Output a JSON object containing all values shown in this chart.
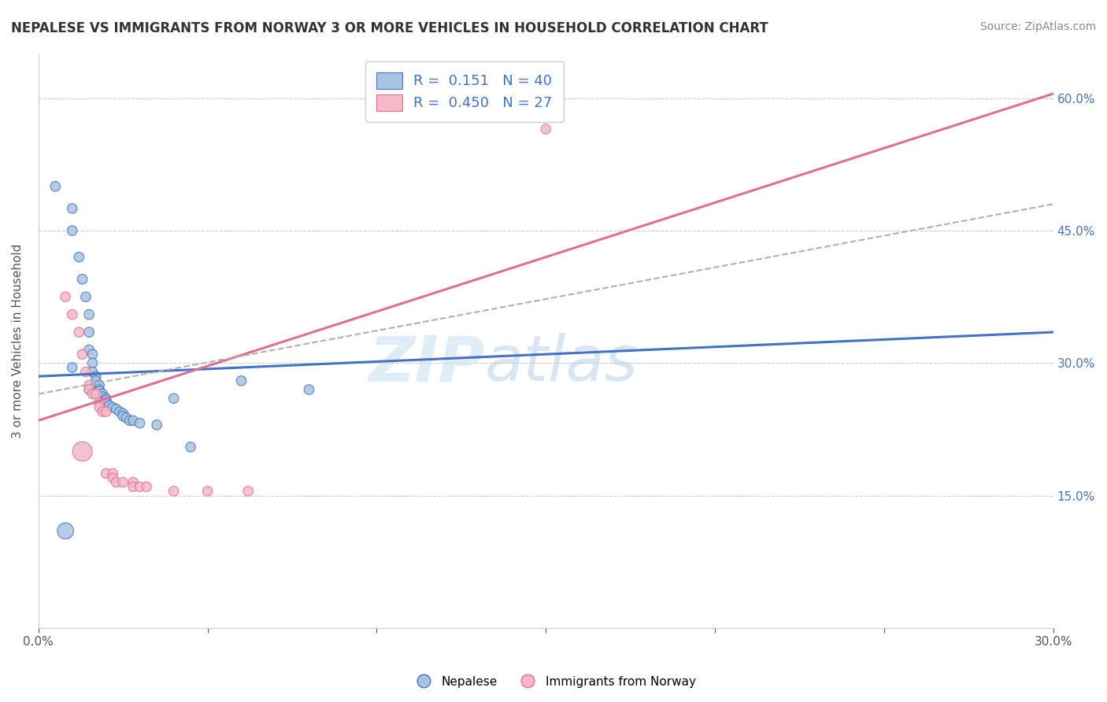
{
  "title": "NEPALESE VS IMMIGRANTS FROM NORWAY 3 OR MORE VEHICLES IN HOUSEHOLD CORRELATION CHART",
  "source": "Source: ZipAtlas.com",
  "ylabel": "3 or more Vehicles in Household",
  "x_min": 0.0,
  "x_max": 0.3,
  "y_min": 0.0,
  "y_max": 0.65,
  "x_ticks": [
    0.0,
    0.05,
    0.1,
    0.15,
    0.2,
    0.25,
    0.3
  ],
  "x_tick_labels": [
    "0.0%",
    "",
    "",
    "",
    "",
    "",
    "30.0%"
  ],
  "y_ticks": [
    0.0,
    0.15,
    0.3,
    0.45,
    0.6
  ],
  "y_tick_labels_right": [
    "",
    "15.0%",
    "30.0%",
    "45.0%",
    "60.0%"
  ],
  "blue_color": "#a8c4e0",
  "pink_color": "#f4b8c8",
  "blue_line_color": "#4472c4",
  "pink_line_color": "#e07090",
  "dashed_line_color": "#b0b0b0",
  "watermark_zip": "ZIP",
  "watermark_atlas": "atlas",
  "blue_line": [
    0.0,
    0.285,
    0.3,
    0.335
  ],
  "pink_line": [
    0.0,
    0.235,
    0.3,
    0.605
  ],
  "dashed_line": [
    0.0,
    0.265,
    0.3,
    0.48
  ],
  "blue_scatter": [
    [
      0.005,
      0.5
    ],
    [
      0.01,
      0.475
    ],
    [
      0.01,
      0.45
    ],
    [
      0.012,
      0.42
    ],
    [
      0.013,
      0.395
    ],
    [
      0.014,
      0.375
    ],
    [
      0.015,
      0.355
    ],
    [
      0.015,
      0.335
    ],
    [
      0.015,
      0.315
    ],
    [
      0.016,
      0.31
    ],
    [
      0.016,
      0.3
    ],
    [
      0.016,
      0.29
    ],
    [
      0.017,
      0.285
    ],
    [
      0.017,
      0.28
    ],
    [
      0.018,
      0.275
    ],
    [
      0.018,
      0.27
    ],
    [
      0.018,
      0.268
    ],
    [
      0.019,
      0.265
    ],
    [
      0.019,
      0.262
    ],
    [
      0.02,
      0.26
    ],
    [
      0.02,
      0.258
    ],
    [
      0.02,
      0.255
    ],
    [
      0.021,
      0.252
    ],
    [
      0.022,
      0.25
    ],
    [
      0.023,
      0.248
    ],
    [
      0.024,
      0.245
    ],
    [
      0.025,
      0.243
    ],
    [
      0.025,
      0.24
    ],
    [
      0.026,
      0.238
    ],
    [
      0.027,
      0.235
    ],
    [
      0.028,
      0.235
    ],
    [
      0.03,
      0.232
    ],
    [
      0.035,
      0.23
    ],
    [
      0.04,
      0.26
    ],
    [
      0.06,
      0.28
    ],
    [
      0.08,
      0.27
    ],
    [
      0.01,
      0.295
    ],
    [
      0.045,
      0.205
    ],
    [
      0.008,
      0.11
    ],
    [
      0.015,
      0.27
    ]
  ],
  "pink_scatter": [
    [
      0.008,
      0.375
    ],
    [
      0.01,
      0.355
    ],
    [
      0.012,
      0.335
    ],
    [
      0.013,
      0.31
    ],
    [
      0.014,
      0.29
    ],
    [
      0.015,
      0.275
    ],
    [
      0.015,
      0.27
    ],
    [
      0.016,
      0.265
    ],
    [
      0.017,
      0.265
    ],
    [
      0.018,
      0.255
    ],
    [
      0.018,
      0.25
    ],
    [
      0.019,
      0.245
    ],
    [
      0.02,
      0.245
    ],
    [
      0.02,
      0.175
    ],
    [
      0.022,
      0.175
    ],
    [
      0.022,
      0.17
    ],
    [
      0.023,
      0.165
    ],
    [
      0.025,
      0.165
    ],
    [
      0.028,
      0.165
    ],
    [
      0.028,
      0.16
    ],
    [
      0.03,
      0.16
    ],
    [
      0.032,
      0.16
    ],
    [
      0.04,
      0.155
    ],
    [
      0.05,
      0.155
    ],
    [
      0.062,
      0.155
    ],
    [
      0.15,
      0.565
    ],
    [
      0.013,
      0.2
    ]
  ],
  "blue_sizes": [
    80,
    80,
    80,
    80,
    80,
    80,
    80,
    80,
    80,
    80,
    80,
    80,
    80,
    80,
    80,
    80,
    80,
    80,
    80,
    80,
    80,
    80,
    80,
    80,
    80,
    80,
    80,
    80,
    80,
    80,
    80,
    80,
    80,
    80,
    80,
    80,
    80,
    80,
    220,
    80
  ],
  "pink_sizes": [
    80,
    80,
    80,
    80,
    80,
    80,
    80,
    80,
    80,
    80,
    80,
    80,
    80,
    80,
    80,
    80,
    80,
    80,
    80,
    80,
    80,
    80,
    80,
    80,
    80,
    80,
    320
  ]
}
